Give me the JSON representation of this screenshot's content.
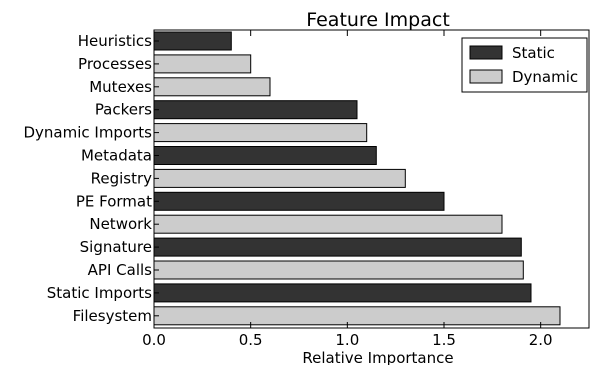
{
  "chart_data": {
    "type": "bar",
    "orientation": "horizontal",
    "title": "Feature Impact",
    "xlabel": "Relative Importance",
    "ylabel": "",
    "xlim": [
      0.0,
      2.25
    ],
    "xticks": [
      "0.0",
      "0.5",
      "1.0",
      "1.5",
      "2.0"
    ],
    "xtick_values": [
      0.0,
      0.5,
      1.0,
      1.5,
      2.0
    ],
    "grid": false,
    "legend_position": "top-right",
    "series": [
      {
        "name": "Static",
        "color": "#333333"
      },
      {
        "name": "Dynamic",
        "color": "#cccccc"
      }
    ],
    "bars": [
      {
        "category": "Heuristics",
        "value": 0.4,
        "series": "Static"
      },
      {
        "category": "Processes",
        "value": 0.5,
        "series": "Dynamic"
      },
      {
        "category": "Mutexes",
        "value": 0.6,
        "series": "Dynamic"
      },
      {
        "category": "Packers",
        "value": 1.05,
        "series": "Static"
      },
      {
        "category": "Dynamic Imports",
        "value": 1.1,
        "series": "Dynamic"
      },
      {
        "category": "Metadata",
        "value": 1.15,
        "series": "Static"
      },
      {
        "category": "Registry",
        "value": 1.3,
        "series": "Dynamic"
      },
      {
        "category": "PE Format",
        "value": 1.5,
        "series": "Static"
      },
      {
        "category": "Network",
        "value": 1.8,
        "series": "Dynamic"
      },
      {
        "category": "Signature",
        "value": 1.9,
        "series": "Static"
      },
      {
        "category": "API Calls",
        "value": 1.91,
        "series": "Dynamic"
      },
      {
        "category": "Static Imports",
        "value": 1.95,
        "series": "Static"
      },
      {
        "category": "Filesystem",
        "value": 2.1,
        "series": "Dynamic"
      }
    ]
  }
}
